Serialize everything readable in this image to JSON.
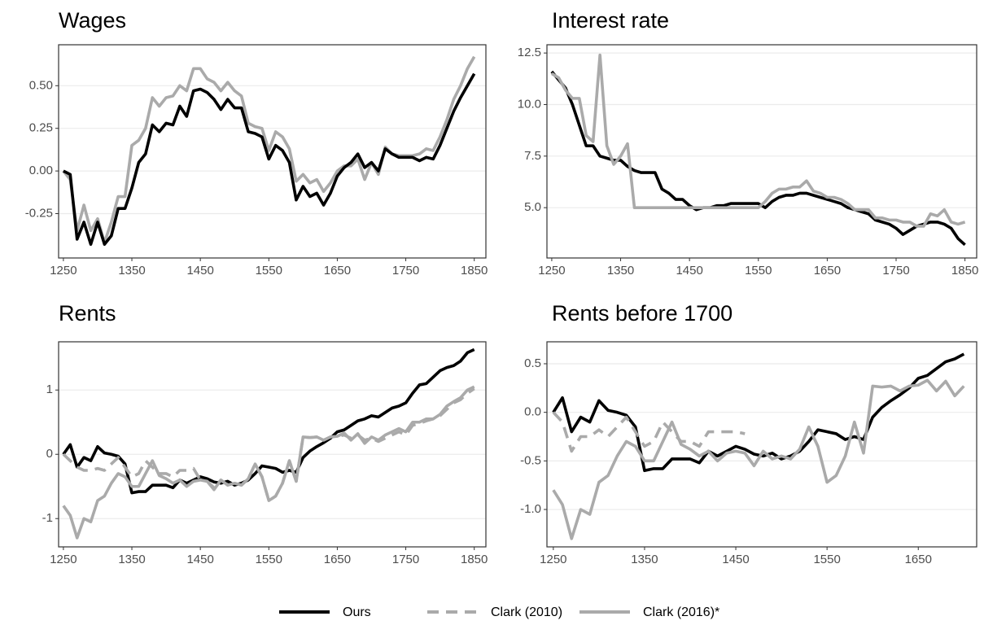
{
  "chart_data": [
    {
      "type": "line",
      "title": "Wages",
      "x": [
        1250,
        1260,
        1270,
        1280,
        1290,
        1300,
        1310,
        1320,
        1330,
        1340,
        1350,
        1360,
        1370,
        1380,
        1390,
        1400,
        1410,
        1420,
        1430,
        1440,
        1450,
        1460,
        1470,
        1480,
        1490,
        1500,
        1510,
        1520,
        1530,
        1540,
        1550,
        1560,
        1570,
        1580,
        1590,
        1600,
        1610,
        1620,
        1630,
        1640,
        1650,
        1660,
        1670,
        1680,
        1690,
        1700,
        1710,
        1720,
        1730,
        1740,
        1750,
        1760,
        1770,
        1780,
        1790,
        1800,
        1810,
        1820,
        1830,
        1840,
        1850
      ],
      "series": [
        {
          "name": "Clark (2016)*",
          "color": "#aaaaaa",
          "dashed": false,
          "values": [
            0,
            -0.05,
            -0.35,
            -0.2,
            -0.35,
            -0.28,
            -0.42,
            -0.3,
            -0.15,
            -0.15,
            0.15,
            0.18,
            0.25,
            0.43,
            0.38,
            0.43,
            0.44,
            0.5,
            0.47,
            0.6,
            0.6,
            0.54,
            0.52,
            0.47,
            0.52,
            0.47,
            0.44,
            0.28,
            0.26,
            0.25,
            0.12,
            0.23,
            0.2,
            0.13,
            -0.06,
            -0.02,
            -0.07,
            -0.05,
            -0.12,
            -0.07,
            0,
            0.03,
            0.03,
            0.07,
            -0.05,
            0.05,
            -0.02,
            0.14,
            0.1,
            0.09,
            0.09,
            0.09,
            0.1,
            0.13,
            0.12,
            0.2,
            0.3,
            0.42,
            0.5,
            0.6,
            0.67
          ]
        },
        {
          "name": "Ours",
          "color": "#000000",
          "dashed": false,
          "values": [
            0,
            -0.02,
            -0.4,
            -0.3,
            -0.43,
            -0.3,
            -0.43,
            -0.38,
            -0.22,
            -0.22,
            -0.1,
            0.05,
            0.1,
            0.27,
            0.23,
            0.28,
            0.27,
            0.38,
            0.32,
            0.47,
            0.48,
            0.46,
            0.42,
            0.36,
            0.42,
            0.37,
            0.37,
            0.23,
            0.22,
            0.2,
            0.07,
            0.15,
            0.12,
            0.05,
            -0.17,
            -0.09,
            -0.15,
            -0.13,
            -0.2,
            -0.13,
            -0.03,
            0.02,
            0.05,
            0.1,
            0.02,
            0.05,
            0,
            0.13,
            0.1,
            0.08,
            0.08,
            0.08,
            0.06,
            0.08,
            0.07,
            0.15,
            0.25,
            0.35,
            0.43,
            0.5,
            0.57
          ]
        }
      ],
      "xlim": [
        1243,
        1867
      ],
      "xticks": [
        1250,
        1350,
        1450,
        1550,
        1650,
        1750,
        1850
      ],
      "ylim": [
        -0.51,
        0.74
      ],
      "yticks": [
        -0.25,
        {
          "value": 0,
          "label": "0.00"
        },
        0.25,
        {
          "value": 0.5,
          "label": "0.50"
        }
      ],
      "grid": true
    },
    {
      "type": "line",
      "title": "Interest rate",
      "x": [
        1250,
        1260,
        1270,
        1280,
        1290,
        1300,
        1310,
        1320,
        1330,
        1340,
        1350,
        1360,
        1370,
        1380,
        1390,
        1400,
        1410,
        1420,
        1430,
        1440,
        1450,
        1460,
        1470,
        1480,
        1490,
        1500,
        1510,
        1520,
        1530,
        1540,
        1550,
        1560,
        1570,
        1580,
        1590,
        1600,
        1610,
        1620,
        1630,
        1640,
        1650,
        1660,
        1670,
        1680,
        1690,
        1700,
        1710,
        1720,
        1730,
        1740,
        1750,
        1760,
        1770,
        1780,
        1790,
        1800,
        1810,
        1820,
        1830,
        1840,
        1850
      ],
      "series": [
        {
          "name": "Ours",
          "color": "#000000",
          "dashed": false,
          "values": [
            11.6,
            11.2,
            10.8,
            10.0,
            9.0,
            8.0,
            8.0,
            7.5,
            7.4,
            7.3,
            7.3,
            7.0,
            6.8,
            6.7,
            6.7,
            6.7,
            5.9,
            5.7,
            5.4,
            5.4,
            5.1,
            4.9,
            5.0,
            5.0,
            5.1,
            5.1,
            5.2,
            5.2,
            5.2,
            5.2,
            5.2,
            5.0,
            5.3,
            5.5,
            5.6,
            5.6,
            5.7,
            5.7,
            5.6,
            5.5,
            5.4,
            5.3,
            5.2,
            5.0,
            4.9,
            4.8,
            4.7,
            4.4,
            4.3,
            4.2,
            4.0,
            3.7,
            3.9,
            4.1,
            4.2,
            4.3,
            4.3,
            4.2,
            4.0,
            3.5,
            3.2
          ]
        },
        {
          "name": "Clark (2016)*",
          "color": "#aaaaaa",
          "dashed": false,
          "values": [
            11.5,
            11.3,
            10.7,
            10.3,
            10.3,
            8.5,
            8.2,
            12.4,
            8.0,
            7.1,
            7.5,
            8.1,
            5.0,
            5.0,
            5.0,
            5.0,
            5.0,
            5.0,
            5.0,
            5.0,
            5.0,
            5.0,
            5.0,
            5.0,
            5.0,
            5.0,
            5.0,
            5.0,
            5.0,
            5.0,
            5.0,
            5.3,
            5.7,
            5.9,
            5.9,
            6.0,
            6.0,
            6.3,
            5.8,
            5.7,
            5.5,
            5.5,
            5.4,
            5.2,
            4.9,
            4.9,
            4.9,
            4.5,
            4.5,
            4.4,
            4.4,
            4.3,
            4.3,
            4.1,
            4.1,
            4.7,
            4.6,
            4.9,
            4.3,
            4.2,
            4.3
          ]
        }
      ],
      "xlim": [
        1243,
        1867
      ],
      "xticks": [
        1250,
        1350,
        1450,
        1550,
        1650,
        1750,
        1850
      ],
      "ylim": [
        2.56,
        12.9
      ],
      "yticks": [
        {
          "value": 5,
          "label": "5.0"
        },
        7.5,
        {
          "value": 10,
          "label": "10.0"
        },
        12.5
      ],
      "grid": true
    },
    {
      "type": "line",
      "title": "Rents",
      "x": [
        1250,
        1260,
        1270,
        1280,
        1290,
        1300,
        1310,
        1320,
        1330,
        1340,
        1350,
        1360,
        1370,
        1380,
        1390,
        1400,
        1410,
        1420,
        1430,
        1440,
        1450,
        1460,
        1470,
        1480,
        1490,
        1500,
        1510,
        1520,
        1530,
        1540,
        1550,
        1560,
        1570,
        1580,
        1590,
        1600,
        1610,
        1620,
        1630,
        1640,
        1650,
        1660,
        1670,
        1680,
        1690,
        1700,
        1710,
        1720,
        1730,
        1740,
        1750,
        1760,
        1770,
        1780,
        1790,
        1800,
        1810,
        1820,
        1830,
        1840,
        1850
      ],
      "series": [
        {
          "name": "Ours",
          "color": "#000000",
          "dashed": false,
          "values": [
            0,
            0.15,
            -0.2,
            -0.05,
            -0.1,
            0.12,
            0.02,
            0,
            -0.03,
            -0.15,
            -0.6,
            -0.58,
            -0.58,
            -0.48,
            -0.48,
            -0.48,
            -0.52,
            -0.4,
            -0.45,
            -0.4,
            -0.35,
            -0.38,
            -0.43,
            -0.45,
            -0.42,
            -0.48,
            -0.45,
            -0.4,
            -0.3,
            -0.18,
            -0.2,
            -0.22,
            -0.28,
            -0.25,
            -0.28,
            -0.05,
            0.05,
            0.12,
            0.18,
            0.25,
            0.35,
            0.38,
            0.45,
            0.52,
            0.55,
            0.6,
            0.58,
            0.65,
            0.72,
            0.75,
            0.8,
            0.95,
            1.08,
            1.1,
            1.2,
            1.3,
            1.35,
            1.38,
            1.45,
            1.58,
            1.63
          ]
        },
        {
          "name": "Clark (2010)",
          "color": "#aaaaaa",
          "dashed": true,
          "values": [
            0,
            -0.1,
            -0.2,
            -0.25,
            -0.25,
            -0.22,
            -0.25,
            -0.15,
            -0.05,
            -0.2,
            -0.35,
            -0.3,
            -0.1,
            -0.2,
            -0.3,
            -0.3,
            -0.35,
            -0.25,
            -0.25,
            -0.22,
            -0.4,
            -0.42,
            -0.52,
            -0.4,
            -0.48,
            -0.45,
            -0.48,
            -0.38,
            -0.15,
            -0.35,
            -0.72,
            -0.65,
            -0.45,
            -0.1,
            -0.42,
            0.27,
            0.26,
            0.27,
            0.22,
            0.27,
            0.28,
            0.3,
            0.25,
            0.3,
            0.22,
            0.25,
            0.2,
            0.25,
            0.3,
            0.35,
            0.3,
            0.45,
            0.48,
            0.52,
            0.55,
            0.6,
            0.7,
            0.8,
            0.85,
            0.95,
            1.02
          ]
        },
        {
          "name": "Clark (2016)*",
          "color": "#aaaaaa",
          "dashed": false,
          "values": [
            -0.8,
            -0.95,
            -1.3,
            -1.0,
            -1.05,
            -0.72,
            -0.65,
            -0.45,
            -0.3,
            -0.35,
            -0.5,
            -0.5,
            -0.3,
            -0.1,
            -0.33,
            -0.38,
            -0.45,
            -0.4,
            -0.5,
            -0.42,
            -0.4,
            -0.42,
            -0.55,
            -0.4,
            -0.48,
            -0.45,
            -0.48,
            -0.38,
            -0.15,
            -0.35,
            -0.72,
            -0.65,
            -0.45,
            -0.1,
            -0.42,
            0.27,
            0.26,
            0.27,
            0.22,
            0.27,
            0.28,
            0.33,
            0.22,
            0.32,
            0.17,
            0.27,
            0.22,
            0.3,
            0.35,
            0.4,
            0.35,
            0.5,
            0.5,
            0.55,
            0.55,
            0.62,
            0.75,
            0.82,
            0.88,
            1.0,
            1.05
          ]
        }
      ],
      "xlim": [
        1243,
        1867
      ],
      "xticks": [
        1250,
        1350,
        1450,
        1550,
        1650,
        1750,
        1850
      ],
      "ylim": [
        -1.44,
        1.75
      ],
      "yticks": [
        -1,
        0,
        1
      ],
      "grid": true
    },
    {
      "type": "line",
      "title": "Rents before 1700",
      "x": [
        1250,
        1260,
        1270,
        1280,
        1290,
        1300,
        1310,
        1320,
        1330,
        1340,
        1350,
        1360,
        1370,
        1380,
        1390,
        1400,
        1410,
        1420,
        1430,
        1440,
        1450,
        1460,
        1470,
        1480,
        1490,
        1500,
        1510,
        1520,
        1530,
        1540,
        1550,
        1560,
        1570,
        1580,
        1590,
        1600,
        1610,
        1620,
        1630,
        1640,
        1650,
        1660,
        1670,
        1680,
        1690,
        1700
      ],
      "series": [
        {
          "name": "Ours",
          "color": "#000000",
          "dashed": false,
          "values": [
            0,
            0.15,
            -0.2,
            -0.05,
            -0.1,
            0.12,
            0.02,
            0,
            -0.03,
            -0.15,
            -0.6,
            -0.58,
            -0.58,
            -0.48,
            -0.48,
            -0.48,
            -0.52,
            -0.4,
            -0.45,
            -0.4,
            -0.35,
            -0.38,
            -0.43,
            -0.45,
            -0.42,
            -0.48,
            -0.45,
            -0.4,
            -0.3,
            -0.18,
            -0.2,
            -0.22,
            -0.28,
            -0.25,
            -0.28,
            -0.05,
            0.05,
            0.12,
            0.18,
            0.25,
            0.35,
            0.38,
            0.45,
            0.52,
            0.55,
            0.6
          ]
        },
        {
          "name": "Clark (2010)",
          "color": "#aaaaaa",
          "dashed": true,
          "values": [
            0,
            -0.1,
            -0.4,
            -0.25,
            -0.25,
            -0.18,
            -0.25,
            -0.15,
            -0.05,
            -0.2,
            -0.35,
            -0.3,
            -0.1,
            -0.2,
            -0.3,
            -0.3,
            -0.35,
            -0.2,
            -0.2,
            -0.2,
            -0.2,
            -0.22,
            null,
            null,
            null,
            null,
            null,
            null,
            null,
            null,
            null,
            null,
            null,
            null,
            null,
            null,
            null,
            null,
            null,
            null,
            null,
            null,
            null,
            null,
            null,
            null
          ]
        },
        {
          "name": "Clark (2016)*",
          "color": "#aaaaaa",
          "dashed": false,
          "values": [
            -0.8,
            -0.95,
            -1.3,
            -1.0,
            -1.05,
            -0.72,
            -0.65,
            -0.45,
            -0.3,
            -0.35,
            -0.5,
            -0.5,
            -0.3,
            -0.1,
            -0.33,
            -0.38,
            -0.45,
            -0.4,
            -0.5,
            -0.42,
            -0.4,
            -0.42,
            -0.55,
            -0.4,
            -0.48,
            -0.45,
            -0.48,
            -0.38,
            -0.15,
            -0.35,
            -0.72,
            -0.65,
            -0.45,
            -0.1,
            -0.42,
            0.27,
            0.26,
            0.27,
            0.22,
            0.27,
            0.28,
            0.33,
            0.22,
            0.32,
            0.17,
            0.27
          ]
        }
      ],
      "xlim": [
        1243,
        1714
      ],
      "xticks": [
        1250,
        1350,
        1450,
        1550,
        1650
      ],
      "ylim": [
        -1.385,
        0.726
      ],
      "yticks": [
        {
          "value": -1,
          "label": "-1.0"
        },
        -0.5,
        {
          "value": 0,
          "label": "0.0"
        },
        0.5
      ],
      "grid": true
    }
  ]
}
